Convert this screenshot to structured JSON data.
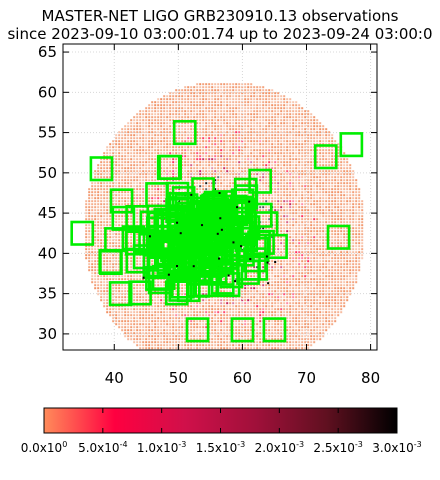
{
  "chart_data": {
    "type": "scatter",
    "title": "MASTER-NET LIGO GRB230910.13 observations",
    "subtitle": "since 2023-09-10 03:00:01.74 up to 2023-09-24 03:00:0",
    "xlim": [
      32,
      81
    ],
    "ylim": [
      28,
      66
    ],
    "x_ticks": [
      "40",
      "50",
      "60",
      "70",
      "80"
    ],
    "x_tick_values": [
      40,
      50,
      60,
      70,
      80
    ],
    "y_ticks": [
      "30",
      "35",
      "40",
      "45",
      "50",
      "55",
      "60",
      "65"
    ],
    "y_tick_values": [
      30,
      35,
      40,
      45,
      50,
      55,
      60,
      65
    ],
    "probability_region": {
      "center": [
        57,
        43
      ],
      "radius_x": 22,
      "radius_y": 18.5
    },
    "fields_of_view_center_range": {
      "x": [
        35,
        77
      ],
      "y": [
        30,
        55
      ]
    },
    "isolated_fields": [
      {
        "x": 51,
        "y": 55
      },
      {
        "x": 77,
        "y": 53.5
      },
      {
        "x": 73,
        "y": 52
      },
      {
        "x": 38,
        "y": 50.5
      },
      {
        "x": 35,
        "y": 42.5
      },
      {
        "x": 75,
        "y": 42
      },
      {
        "x": 41,
        "y": 35
      },
      {
        "x": 53,
        "y": 30.5
      },
      {
        "x": 60,
        "y": 30.5
      },
      {
        "x": 65,
        "y": 30.5
      }
    ],
    "colorbar": {
      "min": 0.0,
      "max": 0.003,
      "colors": [
        "#ff8c5a",
        "#ff0040",
        "#d0104a",
        "#a0103a",
        "#601020",
        "#000000"
      ],
      "tick_labels": [
        {
          "mantissa": "0.0x10",
          "exp": "0"
        },
        {
          "mantissa": "5.0x10",
          "exp": "-4"
        },
        {
          "mantissa": "1.0x10",
          "exp": "-3"
        },
        {
          "mantissa": "1.5x10",
          "exp": "-3"
        },
        {
          "mantissa": "2.0x10",
          "exp": "-3"
        },
        {
          "mantissa": "2.5x10",
          "exp": "-3"
        },
        {
          "mantissa": "3.0x10",
          "exp": "-3"
        }
      ]
    },
    "field_color": "#00ee00",
    "grid": true
  }
}
